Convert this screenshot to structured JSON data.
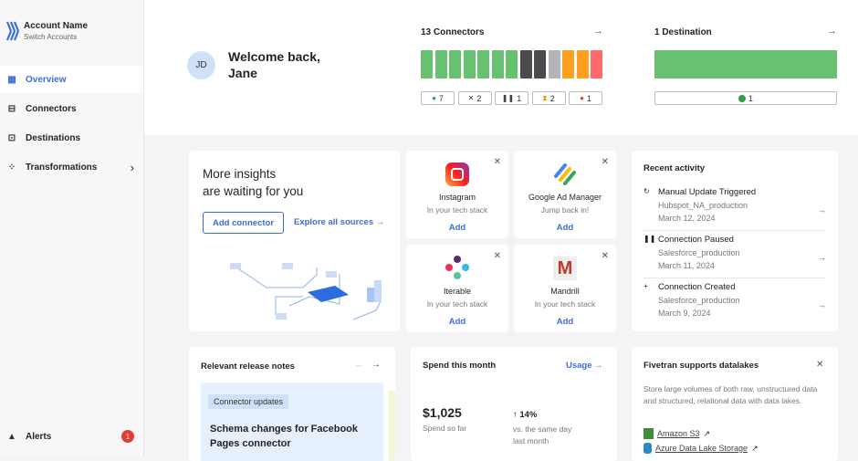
{
  "sidebar": {
    "account_name": "Account Name",
    "switch": "Switch Accounts",
    "items": [
      {
        "label": "Overview",
        "icon": "grid-icon"
      },
      {
        "label": "Connectors",
        "icon": "connector-icon"
      },
      {
        "label": "Destinations",
        "icon": "destination-icon"
      },
      {
        "label": "Transformations",
        "icon": "transform-icon"
      }
    ],
    "alerts": {
      "label": "Alerts",
      "count": "1"
    }
  },
  "header": {
    "avatar": "JD",
    "welcome": "Welcome back,",
    "name": "Jane",
    "connectors": {
      "title": "13 Connectors",
      "bars": [
        "#68c170",
        "#68c170",
        "#68c170",
        "#68c170",
        "#68c170",
        "#68c170",
        "#68c170",
        "#4a4b4d",
        "#4a4b4d",
        "#b3b5b9",
        "#ff9e1f",
        "#ff9e1f",
        "#ff6b6b"
      ],
      "status": [
        {
          "icon": "check-icon",
          "count": "7"
        },
        {
          "icon": "x-icon",
          "count": "2"
        },
        {
          "icon": "pause-icon",
          "count": "1"
        },
        {
          "icon": "hourglass-icon",
          "count": "2"
        },
        {
          "icon": "error-icon",
          "count": "1"
        }
      ]
    },
    "destinations": {
      "title": "1 Destination",
      "count": "1"
    }
  },
  "insights": {
    "title1": "More insights",
    "title2": "are waiting for you",
    "add": "Add connector",
    "explore": "Explore all sources"
  },
  "tiles": [
    {
      "name": "Instagram",
      "sub": "In your tech stack",
      "action": "Add"
    },
    {
      "name": "Google Ad Manager",
      "sub": "Jump back in!",
      "action": "Add"
    },
    {
      "name": "Iterable",
      "sub": "In your tech stack",
      "action": "Add"
    },
    {
      "name": "Mandrill",
      "sub": "In your tech stack",
      "action": "Add"
    }
  ],
  "activity": {
    "title": "Recent activity",
    "items": [
      {
        "icon": "refresh-icon",
        "glyph": "↻",
        "title": "Manual Update Triggered",
        "source": "Hubspot_NA_production",
        "date": "March 12, 2024"
      },
      {
        "icon": "pause-icon",
        "glyph": "❚❚",
        "title": "Connection Paused",
        "source": "Salesforce_production",
        "date": "March 11, 2024"
      },
      {
        "icon": "plus-icon",
        "glyph": "+",
        "title": "Connection Created",
        "source": "Salesforce_production",
        "date": "March 9, 2024"
      }
    ]
  },
  "release": {
    "title": "Relevant release notes",
    "tag": "Connector updates",
    "headline": "Schema changes for Facebook Pages connector"
  },
  "spend": {
    "title": "Spend this month",
    "usage": "Usage",
    "amount": "$1,025",
    "amount_label": "Spend so far",
    "change": "14%",
    "change_label1": "vs. the same day",
    "change_label2": "last month"
  },
  "datalakes": {
    "title": "Fivetran supports datalakes",
    "body": "Store large volumes of both raw, unstructured data and structured, relational data with data lakes.",
    "links": [
      "Amazon S3",
      "Azure Data Lake Storage"
    ]
  }
}
